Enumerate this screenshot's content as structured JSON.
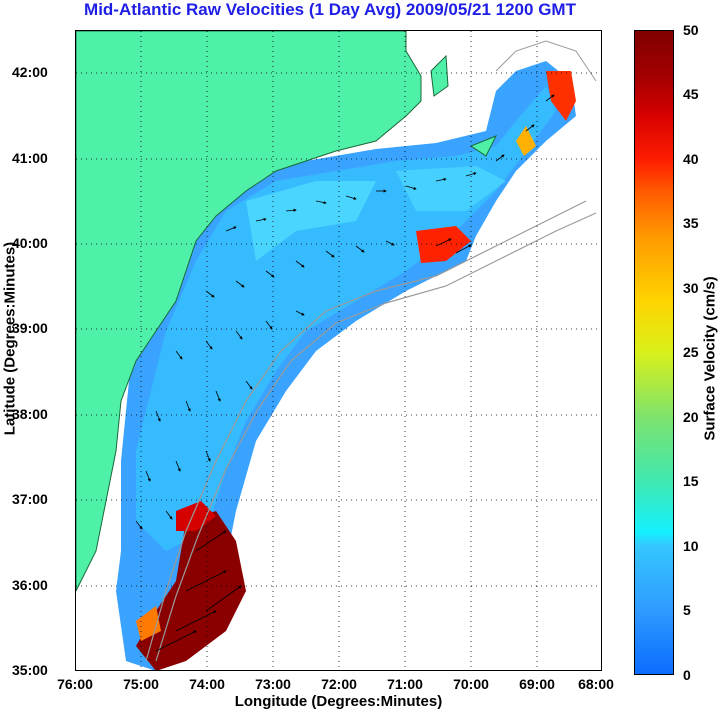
{
  "title": "Mid-Atlantic Raw Velocities (1 Day Avg) 2009/05/21 1200 GMT",
  "xlabel": "Longitude (Degrees:Minutes)",
  "ylabel": "Latitude (Degrees:Minutes)",
  "colorbar_label": "Surface Velocity (cm/s)",
  "x_ticks": [
    "76:00",
    "75:00",
    "74:00",
    "73:00",
    "72:00",
    "71:00",
    "70:00",
    "69:00",
    "68:00"
  ],
  "y_ticks": [
    "42:00",
    "41:00",
    "40:00",
    "39:00",
    "38:00",
    "37:00",
    "36:00",
    "35:00"
  ],
  "colorbar_ticks": [
    "50",
    "45",
    "40",
    "35",
    "30",
    "25",
    "20",
    "15",
    "10",
    "5",
    "0"
  ],
  "colors": {
    "land": "#4ff0a8",
    "title": "#1e1ee6",
    "low_velocity": "#2f9bff",
    "high_velocity": "#8a0000"
  },
  "map": {
    "lon_range": [
      -76,
      -68
    ],
    "lat_range": [
      35,
      42.5
    ],
    "colorbar_range": [
      0,
      50
    ]
  }
}
